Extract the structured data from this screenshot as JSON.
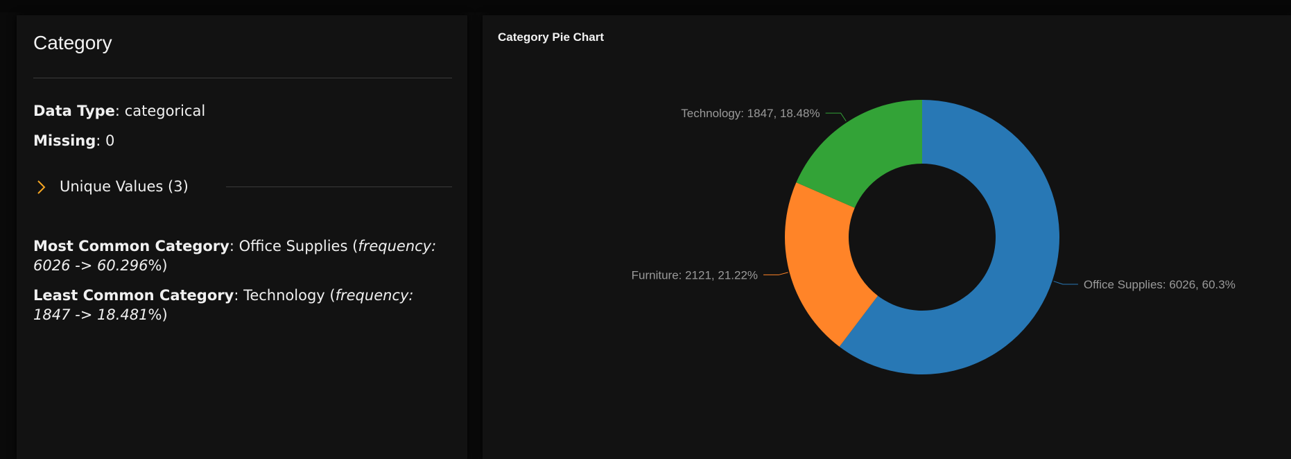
{
  "left_panel": {
    "title": "Category",
    "data_type_label": "Data Type",
    "data_type_value": "categorical",
    "missing_label": "Missing",
    "missing_value": "0",
    "unique_values_label": "Unique Values (3)",
    "most_common_label": "Most Common Category",
    "most_common_value": "Office Supplies",
    "most_common_freq_prefix": "frequency:",
    "most_common_freq_text": "6026 -> 60.296",
    "least_common_label": "Least Common Category",
    "least_common_value": "Technology",
    "least_common_freq_prefix": "frequency: 1847",
    "least_common_freq_text": "-> 18.481",
    "percent_sign": "%",
    "colon": ":",
    "open_paren": "(",
    "close_paren": ")"
  },
  "right_panel": {
    "title": "Category Pie Chart"
  },
  "colors": {
    "accent": "#f5a623",
    "background": "#121212"
  },
  "chart_data": {
    "type": "pie",
    "donut": true,
    "categories": [
      "Office Supplies",
      "Furniture",
      "Technology"
    ],
    "values": [
      6026,
      2121,
      1847
    ],
    "percents": [
      60.3,
      21.22,
      18.48
    ],
    "labels": [
      "Office Supplies: 6026, 60.3%",
      "Furniture: 2121, 21.22%",
      "Technology: 1847, 18.48%"
    ],
    "colors": [
      "#2878b5",
      "#ff8428",
      "#33a337"
    ],
    "title": "Category Pie Chart"
  }
}
